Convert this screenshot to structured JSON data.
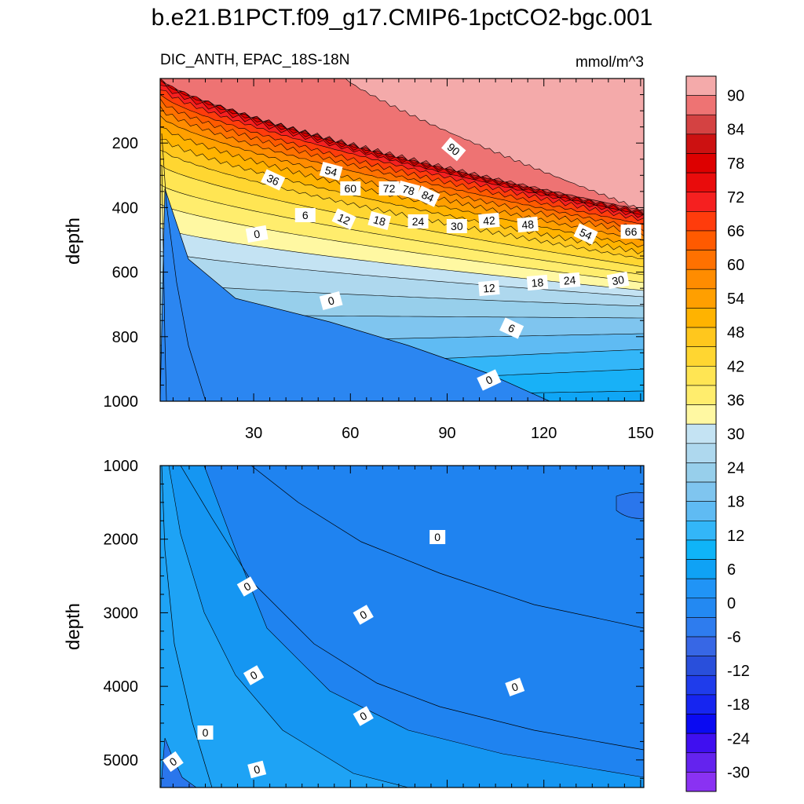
{
  "title": "b.e21.B1PCT.f09_g17.CMIP6-1pctCO2-bgc.001",
  "chart_data": {
    "type": "contour",
    "title": "b.e21.B1PCT.f09_g17.CMIP6-1pctCO2-bgc.001",
    "variable_label": "DIC_ANTH, EPAC_18S-18N",
    "units": "mmol/m^3",
    "x_ticks": [
      30,
      60,
      90,
      120,
      150
    ],
    "xlim": [
      1,
      151
    ],
    "colorbar": {
      "levels": [
        90,
        84,
        78,
        72,
        66,
        60,
        54,
        48,
        42,
        36,
        30,
        24,
        18,
        12,
        6,
        0,
        -6,
        -12,
        -18,
        -24,
        -30
      ],
      "colors": [
        "#f4aaaa",
        "#ee7373",
        "#d44242",
        "#cc1111",
        "#dd0000",
        "#e90c0c",
        "#f52020",
        "#ff3c0c",
        "#ff5a00",
        "#ff7100",
        "#ff8c00",
        "#ff9f00",
        "#ffb300",
        "#ffc71d",
        "#ffd631",
        "#ffe553",
        "#ffed6d",
        "#fff8a2",
        "#c4e3f3",
        "#aed8ee",
        "#97cfeb",
        "#7fc5ef",
        "#5fbbf3",
        "#33b6f8",
        "#0fb4f8",
        "#0fa2f5",
        "#2094f6",
        "#2389f2",
        "#2e7cee",
        "#3767e5",
        "#294fdb",
        "#1f3ceb",
        "#1625f0",
        "#0a0af2",
        "#3f0ff0",
        "#6423ee",
        "#8a32f2"
      ]
    },
    "panels": [
      {
        "name": "upper",
        "ylabel": "depth",
        "y_ticks": [
          200,
          400,
          600,
          800,
          1000
        ],
        "ylim": [
          0,
          1000
        ],
        "contour_labels": [
          "90",
          "54",
          "36",
          "60",
          "72",
          "78",
          "84",
          "6",
          "12",
          "18",
          "24",
          "30",
          "42",
          "48",
          "54",
          "66",
          "0",
          "12",
          "18",
          "24",
          "30",
          "0",
          "6",
          "0"
        ]
      },
      {
        "name": "lower",
        "ylabel": "depth",
        "y_ticks": [
          1000,
          2000,
          3000,
          4000,
          5000
        ],
        "ylim": [
          1000,
          5375
        ],
        "contour_labels": [
          "0",
          "0",
          "0",
          "0",
          "0",
          "0",
          "0",
          "0",
          "0"
        ]
      }
    ]
  }
}
